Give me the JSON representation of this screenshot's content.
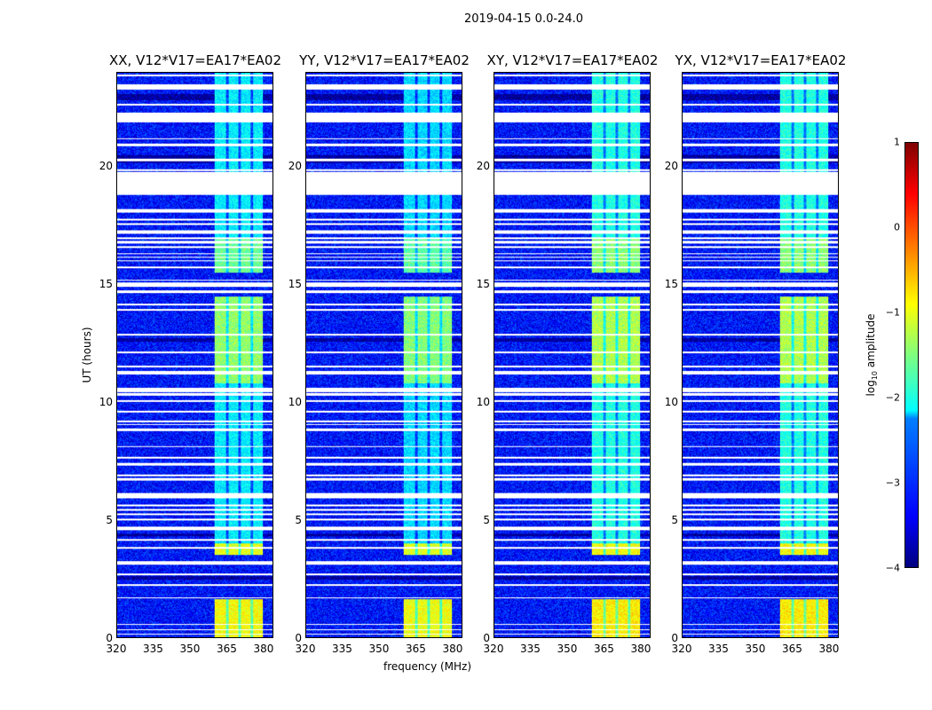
{
  "chart_data": {
    "type": "heatmap",
    "suptitle": "2019-04-15 0.0-24.0",
    "xlabel": "frequency (MHz)",
    "ylabel": "UT (hours)",
    "xlim": [
      320,
      384
    ],
    "ylim": [
      0,
      24
    ],
    "xticks": [
      "320",
      "335",
      "350",
      "365",
      "380"
    ],
    "yticks": [
      "0",
      "5",
      "10",
      "15",
      "20"
    ],
    "panels": [
      {
        "title": "XX, V12*V17=EA17*EA02",
        "band_gain": 1.0
      },
      {
        "title": "YY, V12*V17=EA17*EA02",
        "band_gain": 1.05
      },
      {
        "title": "XY, V12*V17=EA17*EA02",
        "band_gain": 0.9
      },
      {
        "title": "YX, V12*V17=EA17*EA02",
        "band_gain": 0.9
      }
    ],
    "background_log10_amplitude": -3.3,
    "rfi_band_mhz": [
      360,
      380
    ],
    "rfi_segments_hours": [
      {
        "from": 0.0,
        "to": 1.6,
        "level": -0.9
      },
      {
        "from": 3.5,
        "to": 4.0,
        "level": -1.0
      },
      {
        "from": 10.8,
        "to": 14.5,
        "level": -1.4
      },
      {
        "from": 15.5,
        "to": 17.0,
        "level": -1.6
      },
      {
        "from": 4.0,
        "to": 10.8,
        "level": -2.2
      },
      {
        "from": 17.0,
        "to": 24.0,
        "level": -2.2
      }
    ],
    "flagged_hours": [
      [
        23.5,
        23.3
      ],
      [
        22.3,
        21.9
      ],
      [
        19.8,
        18.8
      ],
      [
        18.2,
        18.05
      ],
      [
        17.3,
        17.15
      ],
      [
        15.1,
        14.9
      ],
      [
        14.75,
        14.65
      ],
      [
        10.6,
        10.45
      ],
      [
        6.0,
        5.9
      ],
      [
        4.7,
        4.55
      ],
      [
        3.2,
        3.1
      ],
      [
        1.7,
        1.65
      ],
      [
        0.35,
        0.3
      ]
    ],
    "dark_hours": [
      [
        20.5,
        20.15
      ],
      [
        23.1,
        22.85
      ],
      [
        12.7,
        12.55
      ],
      [
        2.6,
        2.45
      ],
      [
        4.4,
        4.3
      ]
    ],
    "colorbar": {
      "label": "log10 amplitude",
      "ticks": [
        "1",
        "0",
        "−1",
        "−2",
        "−3",
        "−4"
      ],
      "range": [
        -4,
        1
      ]
    }
  }
}
